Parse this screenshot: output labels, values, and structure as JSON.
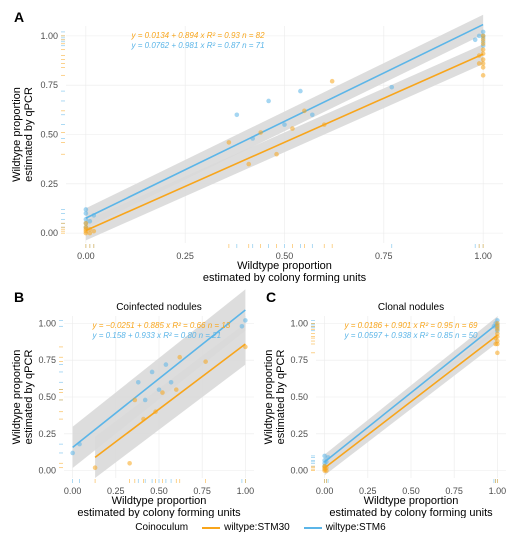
{
  "colors": {
    "wiltype_STM30": "#f8a51b",
    "wiltype_STM6": "#5bb5e8",
    "ci_fill": "#d9d9d9",
    "panel_bg": "#ffffff",
    "grid": "#ebebeb",
    "axis_text": "#4d4d4d",
    "label_text": "#000000"
  },
  "legend": {
    "title": "Coinoculum",
    "items": [
      {
        "key": "wiltype:STM30",
        "color": "#f8a51b"
      },
      {
        "key": "wiltype:STM6",
        "color": "#5bb5e8"
      }
    ]
  },
  "axis": {
    "y_label_line1": "Wildtype proportion",
    "y_label_line2": "estimated by qPCR",
    "x_label_line1": "Wildtype proportion",
    "x_label_line2": "estimated by colony forming units",
    "ticks": [
      0.0,
      0.25,
      0.5,
      0.75,
      1.0
    ],
    "xlim": [
      -0.05,
      1.05
    ],
    "ylim": [
      -0.05,
      1.05
    ]
  },
  "panel_labels": {
    "A": "A",
    "B": "B",
    "C": "C"
  },
  "facet_titles": {
    "B": "Coinfected nodules",
    "C": "Clonal nodules"
  },
  "A": {
    "eq1": {
      "text": "y = 0.0134 + 0.894 x   R² = 0.93   n = 82",
      "color": "#f8a51b"
    },
    "eq2": {
      "text": "y = 0.0762 + 0.981 x   R² = 0.87   n = 71",
      "color": "#5bb5e8"
    },
    "line1": {
      "intercept": 0.0134,
      "slope": 0.894,
      "color": "#f8a51b"
    },
    "line2": {
      "intercept": 0.0762,
      "slope": 0.981,
      "color": "#5bb5e8"
    },
    "ci_halfwidth": 0.05,
    "points_stm30": [
      [
        0.0,
        0.01
      ],
      [
        0.0,
        0.02
      ],
      [
        0.0,
        0.0
      ],
      [
        0.0,
        0.03
      ],
      [
        0.0,
        0.05
      ],
      [
        0.01,
        0.0
      ],
      [
        0.01,
        0.02
      ],
      [
        0.02,
        0.01
      ],
      [
        0.36,
        0.46
      ],
      [
        0.41,
        0.35
      ],
      [
        0.44,
        0.51
      ],
      [
        0.48,
        0.4
      ],
      [
        0.52,
        0.53
      ],
      [
        0.55,
        0.62
      ],
      [
        0.6,
        0.55
      ],
      [
        0.62,
        0.77
      ],
      [
        0.99,
        0.86
      ],
      [
        0.99,
        0.9
      ],
      [
        1.0,
        0.93
      ],
      [
        1.0,
        0.86
      ],
      [
        1.0,
        0.88
      ],
      [
        1.0,
        0.91
      ],
      [
        1.0,
        0.8
      ],
      [
        1.0,
        0.84
      ],
      [
        1.0,
        0.96
      ],
      [
        1.0,
        0.98
      ],
      [
        1.0,
        1.0
      ]
    ],
    "points_stm6": [
      [
        0.0,
        0.03
      ],
      [
        0.0,
        0.05
      ],
      [
        0.0,
        0.07
      ],
      [
        0.0,
        0.1
      ],
      [
        0.0,
        0.12
      ],
      [
        0.01,
        0.06
      ],
      [
        0.02,
        0.09
      ],
      [
        0.38,
        0.6
      ],
      [
        0.42,
        0.48
      ],
      [
        0.46,
        0.67
      ],
      [
        0.5,
        0.55
      ],
      [
        0.54,
        0.72
      ],
      [
        0.57,
        0.6
      ],
      [
        0.77,
        0.74
      ],
      [
        0.98,
        0.98
      ],
      [
        0.99,
        1.0
      ],
      [
        1.0,
        0.99
      ],
      [
        1.0,
        1.02
      ],
      [
        1.0,
        0.95
      ],
      [
        1.0,
        0.97
      ],
      [
        1.0,
        1.0
      ]
    ],
    "rug_y_stm30": [
      0.0,
      0.01,
      0.02,
      0.03,
      0.05,
      0.4,
      0.46,
      0.51,
      0.62,
      0.8,
      0.84,
      0.86,
      0.88,
      0.9,
      0.93,
      0.96,
      0.98,
      1.0
    ],
    "rug_y_stm6": [
      0.03,
      0.05,
      0.07,
      0.1,
      0.12,
      0.48,
      0.55,
      0.6,
      0.67,
      0.72,
      0.95,
      0.97,
      0.98,
      0.99,
      1.0,
      1.02
    ],
    "rug_x_stm30": [
      0.0,
      0.01,
      0.02,
      0.36,
      0.41,
      0.44,
      0.48,
      0.52,
      0.55,
      0.6,
      0.62,
      0.99,
      1.0
    ],
    "rug_x_stm6": [
      0.0,
      0.01,
      0.02,
      0.38,
      0.42,
      0.46,
      0.5,
      0.54,
      0.57,
      0.77,
      0.98,
      0.99,
      1.0
    ]
  },
  "B": {
    "eq1": {
      "text": "y = −0.0251 + 0.885 x   R² = 0.66   n = 13",
      "color": "#f8a51b"
    },
    "eq2": {
      "text": "y =  0.158 + 0.933 x   R² = 0.80   n = 21",
      "color": "#5bb5e8"
    },
    "line1": {
      "intercept": -0.0251,
      "slope": 0.885,
      "color": "#f8a51b",
      "xstart": 0.13
    },
    "line2": {
      "intercept": 0.158,
      "slope": 0.933,
      "color": "#5bb5e8"
    },
    "ci_halfwidth": 0.14,
    "points_stm30": [
      [
        0.13,
        0.02
      ],
      [
        0.33,
        0.05
      ],
      [
        0.36,
        0.48
      ],
      [
        0.41,
        0.35
      ],
      [
        0.48,
        0.4
      ],
      [
        0.52,
        0.53
      ],
      [
        0.6,
        0.55
      ],
      [
        0.62,
        0.77
      ],
      [
        0.77,
        0.74
      ],
      [
        1.0,
        0.84
      ]
    ],
    "points_stm6": [
      [
        0.0,
        0.12
      ],
      [
        0.04,
        0.18
      ],
      [
        0.38,
        0.6
      ],
      [
        0.42,
        0.48
      ],
      [
        0.46,
        0.67
      ],
      [
        0.5,
        0.55
      ],
      [
        0.54,
        0.72
      ],
      [
        0.57,
        0.6
      ],
      [
        0.98,
        0.98
      ],
      [
        1.0,
        1.02
      ]
    ],
    "rug_y_stm30": [
      0.02,
      0.05,
      0.35,
      0.4,
      0.48,
      0.53,
      0.55,
      0.74,
      0.77,
      0.84
    ],
    "rug_y_stm6": [
      0.12,
      0.18,
      0.48,
      0.55,
      0.6,
      0.67,
      0.72,
      0.98,
      1.02
    ],
    "rug_x_stm30": [
      0.13,
      0.33,
      0.36,
      0.41,
      0.48,
      0.52,
      0.6,
      0.62,
      0.77,
      1.0
    ],
    "rug_x_stm6": [
      0.0,
      0.04,
      0.38,
      0.42,
      0.46,
      0.5,
      0.54,
      0.57,
      0.98,
      1.0
    ]
  },
  "C": {
    "eq1": {
      "text": "y = 0.0186 + 0.901 x   R² = 0.95   n = 69",
      "color": "#f8a51b"
    },
    "eq2": {
      "text": "y = 0.0597 + 0.938 x   R² = 0.85   n = 50",
      "color": "#5bb5e8"
    },
    "line1": {
      "intercept": 0.0186,
      "slope": 0.901,
      "color": "#f8a51b"
    },
    "line2": {
      "intercept": 0.0597,
      "slope": 0.938,
      "color": "#5bb5e8"
    },
    "ci_halfwidth": 0.05,
    "points_stm30": [
      [
        0.0,
        0.01
      ],
      [
        0.0,
        0.02
      ],
      [
        0.0,
        0.0
      ],
      [
        0.0,
        0.03
      ],
      [
        0.01,
        0.0
      ],
      [
        0.01,
        0.02
      ],
      [
        0.99,
        0.86
      ],
      [
        0.99,
        0.9
      ],
      [
        1.0,
        0.93
      ],
      [
        1.0,
        0.86
      ],
      [
        1.0,
        0.88
      ],
      [
        1.0,
        0.91
      ],
      [
        1.0,
        0.8
      ],
      [
        1.0,
        0.96
      ],
      [
        1.0,
        0.98
      ],
      [
        1.0,
        1.0
      ]
    ],
    "points_stm6": [
      [
        0.0,
        0.03
      ],
      [
        0.0,
        0.05
      ],
      [
        0.0,
        0.07
      ],
      [
        0.0,
        0.1
      ],
      [
        0.01,
        0.06
      ],
      [
        0.02,
        0.09
      ],
      [
        0.98,
        0.98
      ],
      [
        0.99,
        1.0
      ],
      [
        1.0,
        0.99
      ],
      [
        1.0,
        1.02
      ],
      [
        1.0,
        0.95
      ],
      [
        1.0,
        0.97
      ]
    ],
    "rug_y_stm30": [
      0.0,
      0.01,
      0.02,
      0.03,
      0.8,
      0.86,
      0.88,
      0.9,
      0.91,
      0.93,
      0.96,
      0.98,
      1.0
    ],
    "rug_y_stm6": [
      0.03,
      0.05,
      0.06,
      0.07,
      0.09,
      0.1,
      0.95,
      0.97,
      0.98,
      0.99,
      1.0,
      1.02
    ],
    "rug_x_stm30": [
      0.0,
      0.01,
      0.99,
      1.0
    ],
    "rug_x_stm6": [
      0.0,
      0.01,
      0.02,
      0.98,
      0.99,
      1.0
    ]
  }
}
